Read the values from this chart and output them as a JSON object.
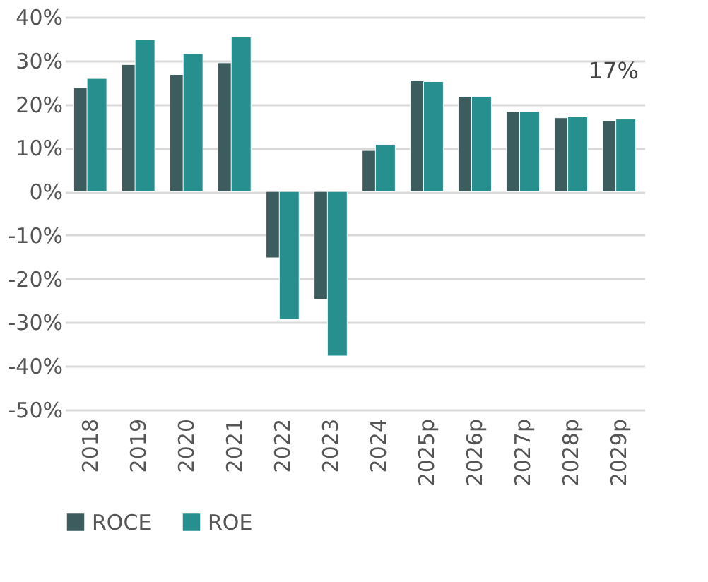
{
  "chart_data": {
    "type": "bar",
    "categories": [
      "2018",
      "2019",
      "2020",
      "2021",
      "2022",
      "2023",
      "2024",
      "2025p",
      "2026p",
      "2027p",
      "2028p",
      "2029p"
    ],
    "series": [
      {
        "name": "ROCE",
        "color": "#3d5c5e",
        "values": [
          23.8,
          29.1,
          26.8,
          29.5,
          -15.2,
          -24.7,
          9.4,
          25.5,
          21.8,
          18.3,
          16.9,
          16.2
        ]
      },
      {
        "name": "ROE",
        "color": "#27908f",
        "values": [
          25.9,
          34.8,
          31.6,
          35.4,
          -29.3,
          -37.7,
          10.8,
          25.2,
          21.8,
          18.3,
          17.1,
          16.6
        ]
      }
    ],
    "ylim": [
      -50,
      40
    ],
    "yticks": [
      {
        "value": -50,
        "label": "-50%"
      },
      {
        "value": -40,
        "label": "-40%"
      },
      {
        "value": -30,
        "label": "-30%"
      },
      {
        "value": -20,
        "label": "-20%"
      },
      {
        "value": -10,
        "label": "-10%"
      },
      {
        "value": 0,
        "label": "0%"
      },
      {
        "value": 10,
        "label": "10%"
      },
      {
        "value": 20,
        "label": "20%"
      },
      {
        "value": 30,
        "label": "30%"
      },
      {
        "value": 40,
        "label": "40%"
      }
    ],
    "annotations": [
      {
        "text": "17%",
        "x": "2029p",
        "y": 16.6
      }
    ],
    "grid": "y",
    "legend": "bottom"
  }
}
